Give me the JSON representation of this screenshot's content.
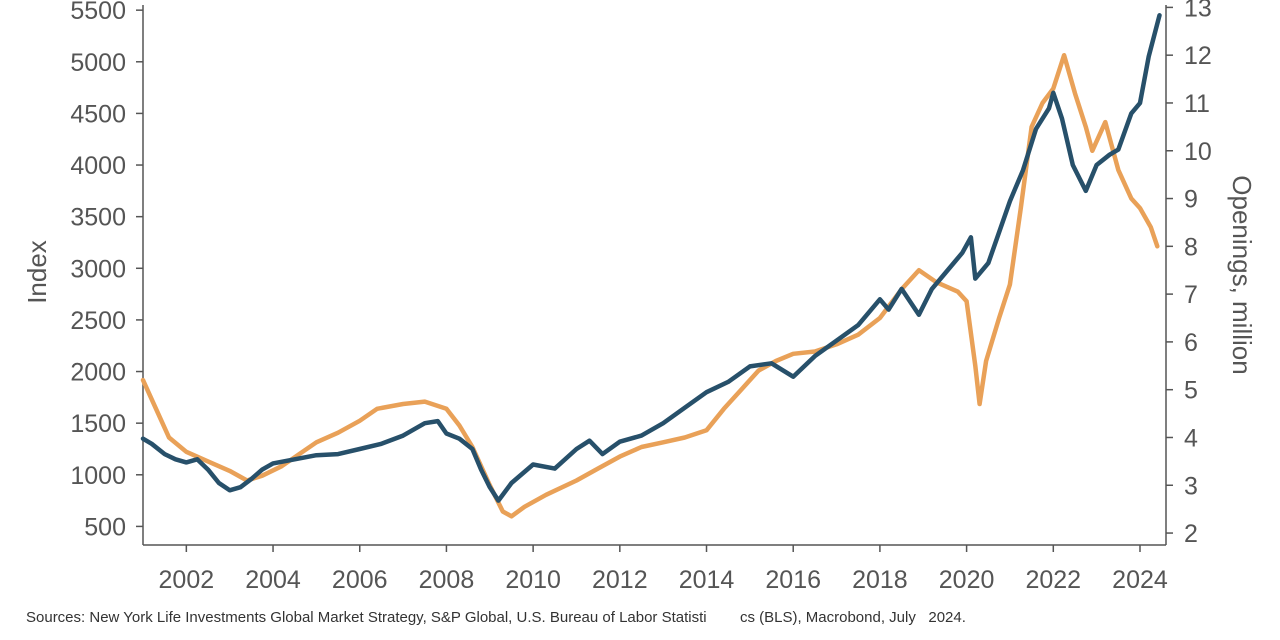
{
  "chart_data": {
    "type": "line",
    "title": "",
    "xlabel": "",
    "ylabel": "Index",
    "y2label": "Openings, million",
    "xlim": [
      2001.0,
      2024.6
    ],
    "ylim": [
      320,
      5550
    ],
    "y2lim": [
      1.75,
      13.05
    ],
    "x_ticks": [
      2002,
      2004,
      2006,
      2008,
      2010,
      2012,
      2014,
      2016,
      2018,
      2020,
      2022,
      2024
    ],
    "y_ticks": [
      500,
      1000,
      1500,
      2000,
      2500,
      3000,
      3500,
      4000,
      4500,
      5000,
      5500
    ],
    "y2_ticks": [
      2,
      3,
      4,
      5,
      6,
      7,
      8,
      9,
      10,
      11,
      12,
      13
    ],
    "grid": false,
    "legend": "none",
    "series": [
      {
        "axis": "left",
        "color": "#27506a",
        "points": [
          [
            2001.0,
            1350
          ],
          [
            2001.2,
            1300
          ],
          [
            2001.5,
            1200
          ],
          [
            2001.75,
            1150
          ],
          [
            2002.0,
            1120
          ],
          [
            2002.25,
            1150
          ],
          [
            2002.5,
            1050
          ],
          [
            2002.75,
            920
          ],
          [
            2003.0,
            850
          ],
          [
            2003.25,
            880
          ],
          [
            2003.5,
            960
          ],
          [
            2003.75,
            1050
          ],
          [
            2004.0,
            1110
          ],
          [
            2004.5,
            1150
          ],
          [
            2005.0,
            1190
          ],
          [
            2005.5,
            1200
          ],
          [
            2006.0,
            1250
          ],
          [
            2006.5,
            1300
          ],
          [
            2007.0,
            1380
          ],
          [
            2007.5,
            1500
          ],
          [
            2007.8,
            1520
          ],
          [
            2008.0,
            1400
          ],
          [
            2008.3,
            1350
          ],
          [
            2008.6,
            1250
          ],
          [
            2008.8,
            1050
          ],
          [
            2009.0,
            880
          ],
          [
            2009.2,
            750
          ],
          [
            2009.5,
            920
          ],
          [
            2010.0,
            1100
          ],
          [
            2010.5,
            1060
          ],
          [
            2011.0,
            1250
          ],
          [
            2011.3,
            1330
          ],
          [
            2011.6,
            1200
          ],
          [
            2012.0,
            1320
          ],
          [
            2012.5,
            1380
          ],
          [
            2013.0,
            1500
          ],
          [
            2013.5,
            1650
          ],
          [
            2014.0,
            1800
          ],
          [
            2014.5,
            1900
          ],
          [
            2015.0,
            2050
          ],
          [
            2015.5,
            2080
          ],
          [
            2016.0,
            1950
          ],
          [
            2016.5,
            2150
          ],
          [
            2017.0,
            2300
          ],
          [
            2017.5,
            2450
          ],
          [
            2018.0,
            2700
          ],
          [
            2018.2,
            2600
          ],
          [
            2018.5,
            2800
          ],
          [
            2018.9,
            2550
          ],
          [
            2019.2,
            2800
          ],
          [
            2019.5,
            2950
          ],
          [
            2019.9,
            3150
          ],
          [
            2020.1,
            3300
          ],
          [
            2020.2,
            2900
          ],
          [
            2020.5,
            3050
          ],
          [
            2020.75,
            3350
          ],
          [
            2021.0,
            3650
          ],
          [
            2021.3,
            3950
          ],
          [
            2021.6,
            4350
          ],
          [
            2021.9,
            4550
          ],
          [
            2022.0,
            4700
          ],
          [
            2022.2,
            4450
          ],
          [
            2022.45,
            4000
          ],
          [
            2022.75,
            3750
          ],
          [
            2023.0,
            4000
          ],
          [
            2023.3,
            4100
          ],
          [
            2023.5,
            4150
          ],
          [
            2023.8,
            4500
          ],
          [
            2024.0,
            4600
          ],
          [
            2024.2,
            5050
          ],
          [
            2024.45,
            5450
          ]
        ]
      },
      {
        "axis": "right",
        "color": "#e9a158",
        "points": [
          [
            2001.0,
            5.2
          ],
          [
            2001.3,
            4.6
          ],
          [
            2001.6,
            4.0
          ],
          [
            2002.0,
            3.7
          ],
          [
            2002.5,
            3.5
          ],
          [
            2003.0,
            3.3
          ],
          [
            2003.4,
            3.1
          ],
          [
            2003.75,
            3.2
          ],
          [
            2004.2,
            3.4
          ],
          [
            2004.6,
            3.65
          ],
          [
            2005.0,
            3.9
          ],
          [
            2005.5,
            4.1
          ],
          [
            2006.0,
            4.35
          ],
          [
            2006.4,
            4.6
          ],
          [
            2007.0,
            4.7
          ],
          [
            2007.5,
            4.75
          ],
          [
            2008.0,
            4.6
          ],
          [
            2008.3,
            4.25
          ],
          [
            2008.6,
            3.8
          ],
          [
            2009.0,
            3.0
          ],
          [
            2009.3,
            2.45
          ],
          [
            2009.5,
            2.35
          ],
          [
            2009.8,
            2.55
          ],
          [
            2010.3,
            2.8
          ],
          [
            2011.0,
            3.1
          ],
          [
            2011.5,
            3.35
          ],
          [
            2012.0,
            3.6
          ],
          [
            2012.5,
            3.8
          ],
          [
            2013.0,
            3.9
          ],
          [
            2013.5,
            4.0
          ],
          [
            2014.0,
            4.15
          ],
          [
            2014.4,
            4.6
          ],
          [
            2014.8,
            5.0
          ],
          [
            2015.2,
            5.4
          ],
          [
            2015.6,
            5.6
          ],
          [
            2016.0,
            5.75
          ],
          [
            2016.5,
            5.8
          ],
          [
            2017.0,
            5.95
          ],
          [
            2017.5,
            6.15
          ],
          [
            2018.0,
            6.5
          ],
          [
            2018.5,
            7.1
          ],
          [
            2018.9,
            7.5
          ],
          [
            2019.3,
            7.25
          ],
          [
            2019.8,
            7.05
          ],
          [
            2020.0,
            6.85
          ],
          [
            2020.2,
            5.5
          ],
          [
            2020.3,
            4.7
          ],
          [
            2020.45,
            5.6
          ],
          [
            2020.75,
            6.5
          ],
          [
            2021.0,
            7.2
          ],
          [
            2021.25,
            8.8
          ],
          [
            2021.5,
            10.5
          ],
          [
            2021.75,
            11.0
          ],
          [
            2022.0,
            11.3
          ],
          [
            2022.25,
            12.0
          ],
          [
            2022.5,
            11.2
          ],
          [
            2022.75,
            10.5
          ],
          [
            2022.9,
            10.0
          ],
          [
            2023.2,
            10.6
          ],
          [
            2023.5,
            9.6
          ],
          [
            2023.8,
            9.0
          ],
          [
            2024.0,
            8.8
          ],
          [
            2024.25,
            8.4
          ],
          [
            2024.4,
            8.0
          ]
        ]
      }
    ]
  },
  "source_note": "Sources: New York Life Investments Global Market Strategy, S&P Global, U.S. Bureau of Labor Statisti        cs (BLS), Macrobond, July   2024."
}
